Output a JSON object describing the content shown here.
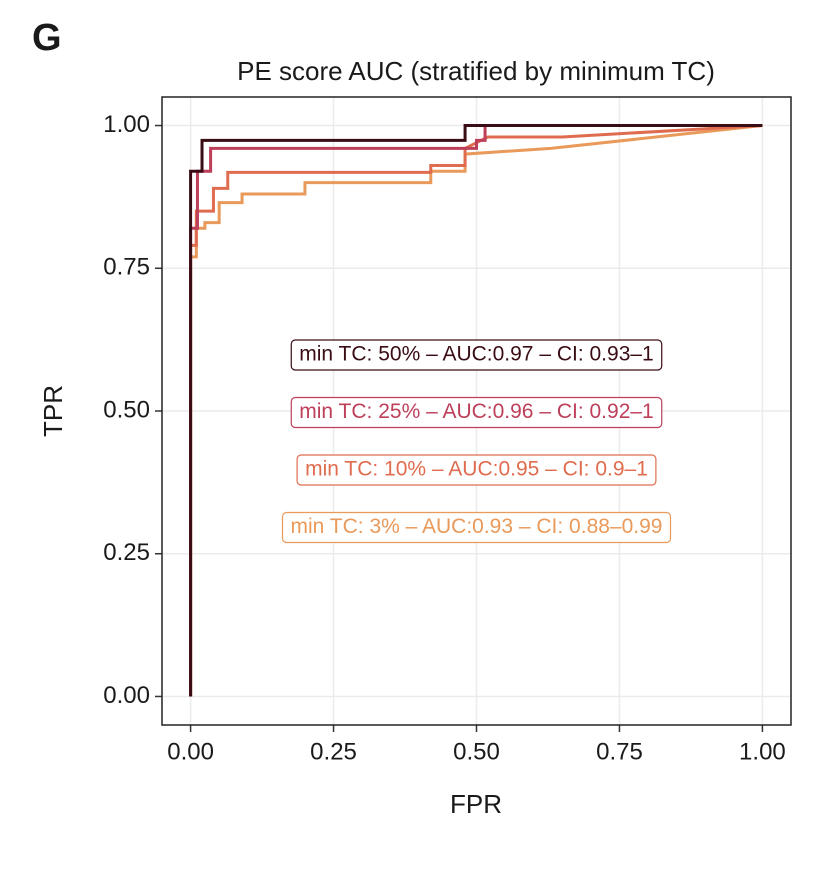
{
  "chart_data": {
    "type": "line",
    "panel": "G",
    "title": "PE score AUC (stratified by minimum TC)",
    "xlabel": "FPR",
    "ylabel": "TPR",
    "xlim": [
      -0.05,
      1.05
    ],
    "ylim": [
      -0.05,
      1.05
    ],
    "xticks": [
      {
        "value": 0,
        "label": "0.00"
      },
      {
        "value": 0.25,
        "label": "0.25"
      },
      {
        "value": 0.5,
        "label": "0.50"
      },
      {
        "value": 0.75,
        "label": "0.75"
      },
      {
        "value": 1,
        "label": "1.00"
      }
    ],
    "yticks": [
      {
        "value": 0,
        "label": "0.00"
      },
      {
        "value": 0.25,
        "label": "0.25"
      },
      {
        "value": 0.5,
        "label": "0.50"
      },
      {
        "value": 0.75,
        "label": "0.75"
      },
      {
        "value": 1,
        "label": "1.00"
      }
    ],
    "grid": true,
    "series": [
      {
        "name": "min TC: 3%",
        "label": "min TC: 3% – AUC:0.93 – CI: 0.88–0.99",
        "color": "#e99a5a",
        "x": [
          0,
          0,
          0.01,
          0.01,
          0.025,
          0.025,
          0.05,
          0.05,
          0.09,
          0.09,
          0.2,
          0.2,
          0.42,
          0.42,
          0.48,
          0.48,
          0.63,
          1
        ],
        "y": [
          0,
          0.77,
          0.77,
          0.82,
          0.82,
          0.83,
          0.83,
          0.865,
          0.865,
          0.88,
          0.88,
          0.9,
          0.9,
          0.92,
          0.92,
          0.95,
          0.96,
          1
        ]
      },
      {
        "name": "min TC: 10%",
        "label": "min TC: 10% – AUC:0.95 – CI: 0.9–1",
        "color": "#e06c4f",
        "x": [
          0,
          0,
          0.01,
          0.01,
          0.04,
          0.04,
          0.065,
          0.065,
          0.42,
          0.42,
          0.48,
          0.48,
          0.52,
          0.65,
          1
        ],
        "y": [
          0,
          0.79,
          0.79,
          0.85,
          0.85,
          0.89,
          0.89,
          0.918,
          0.918,
          0.93,
          0.93,
          0.96,
          0.98,
          0.98,
          1
        ]
      },
      {
        "name": "min TC: 25%",
        "label": "min TC: 25% – AUC:0.96 – CI: 0.92–1",
        "color": "#bd3f5a",
        "x": [
          0,
          0,
          0.012,
          0.012,
          0.035,
          0.035,
          0.5,
          0.5,
          0.515,
          0.515,
          1
        ],
        "y": [
          0,
          0.82,
          0.82,
          0.92,
          0.92,
          0.96,
          0.96,
          0.974,
          0.974,
          1,
          1
        ]
      },
      {
        "name": "min TC: 50%",
        "label": "min TC: 50% – AUC:0.97 – CI: 0.93–1",
        "color": "#3a0d14",
        "x": [
          0,
          0,
          0.02,
          0.02,
          0.48,
          0.48,
          1
        ],
        "y": [
          0,
          0.92,
          0.92,
          0.974,
          0.974,
          1,
          1
        ]
      }
    ]
  }
}
